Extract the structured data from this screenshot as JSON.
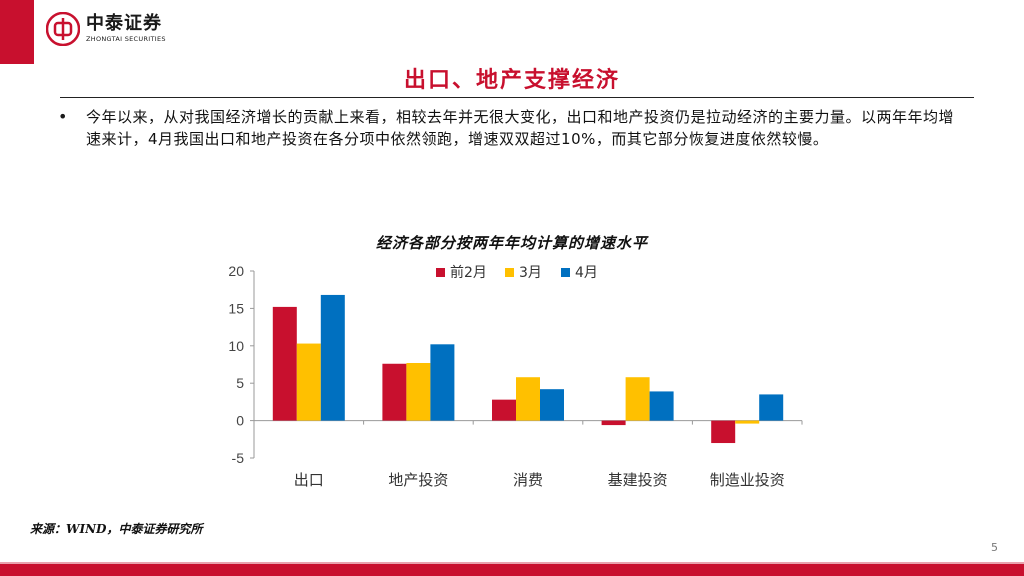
{
  "brand": {
    "name_cn": "中泰证券",
    "name_en": "ZHONGTAI SECURITIES",
    "color": "#c8102e"
  },
  "slide": {
    "title": "出口、地产支撑经济",
    "bullet": "今年以来，从对我国经济增长的贡献上来看，相较去年并无很大变化，出口和地产投资仍是拉动经济的主要力量。以两年年均增速来计，4月我国出口和地产投资在各分项中依然领跑，增速双双超过10%，而其它部分恢复进度依然较慢。",
    "source": "来源：WIND，中泰证券研究所",
    "page_number": "5"
  },
  "chart_data": {
    "type": "bar",
    "title": "经济各部分按两年年均计算的增速水平",
    "categories": [
      "出口",
      "地产投资",
      "消费",
      "基建投资",
      "制造业投资"
    ],
    "series": [
      {
        "name": "前2月",
        "color": "#c8102e",
        "values": [
          15.2,
          7.6,
          2.8,
          -0.6,
          -3.0
        ]
      },
      {
        "name": "3月",
        "color": "#ffc000",
        "values": [
          10.3,
          7.7,
          5.8,
          5.8,
          -0.4
        ]
      },
      {
        "name": "4月",
        "color": "#0070c0",
        "values": [
          16.8,
          10.2,
          4.2,
          3.9,
          3.5
        ]
      }
    ],
    "ylim": [
      -5,
      20
    ],
    "yticks": [
      -5,
      0,
      5,
      10,
      15,
      20
    ],
    "legend": "top-center",
    "grid": false
  }
}
